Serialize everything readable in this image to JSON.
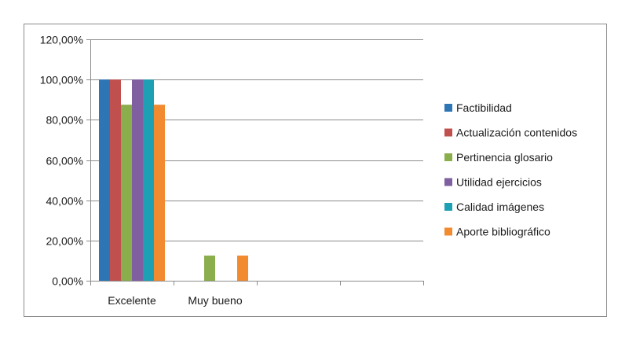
{
  "chart_data": {
    "type": "bar",
    "title": "",
    "xlabel": "",
    "ylabel": "",
    "categories": [
      "Excelente",
      "Muy bueno",
      "",
      ""
    ],
    "series": [
      {
        "name": "Factibilidad",
        "color": "#2E75B6",
        "values": [
          1.0,
          0,
          0,
          0
        ]
      },
      {
        "name": "Actualización contenidos",
        "color": "#C0504D",
        "values": [
          1.0,
          0,
          0,
          0
        ]
      },
      {
        "name": "Pertinencia glosario",
        "color": "#8AAE4C",
        "values": [
          0.875,
          0.125,
          0,
          0
        ]
      },
      {
        "name": "Utilidad ejercicios",
        "color": "#7F5FA0",
        "values": [
          1.0,
          0,
          0,
          0
        ]
      },
      {
        "name": "Calidad imágenes",
        "color": "#1EA0B4",
        "values": [
          1.0,
          0,
          0,
          0
        ]
      },
      {
        "name": "Aporte bibliográfico",
        "color": "#F28A30",
        "values": [
          0.875,
          0.125,
          0,
          0
        ]
      }
    ],
    "ylim": [
      0,
      1.2
    ],
    "yticks": [
      0,
      0.2,
      0.4,
      0.6,
      0.8,
      1.0,
      1.2
    ],
    "ytick_labels": [
      "0,00%",
      "20,00%",
      "40,00%",
      "60,00%",
      "80,00%",
      "100,00%",
      "120,00%"
    ],
    "grid": true,
    "legend_position": "right"
  }
}
